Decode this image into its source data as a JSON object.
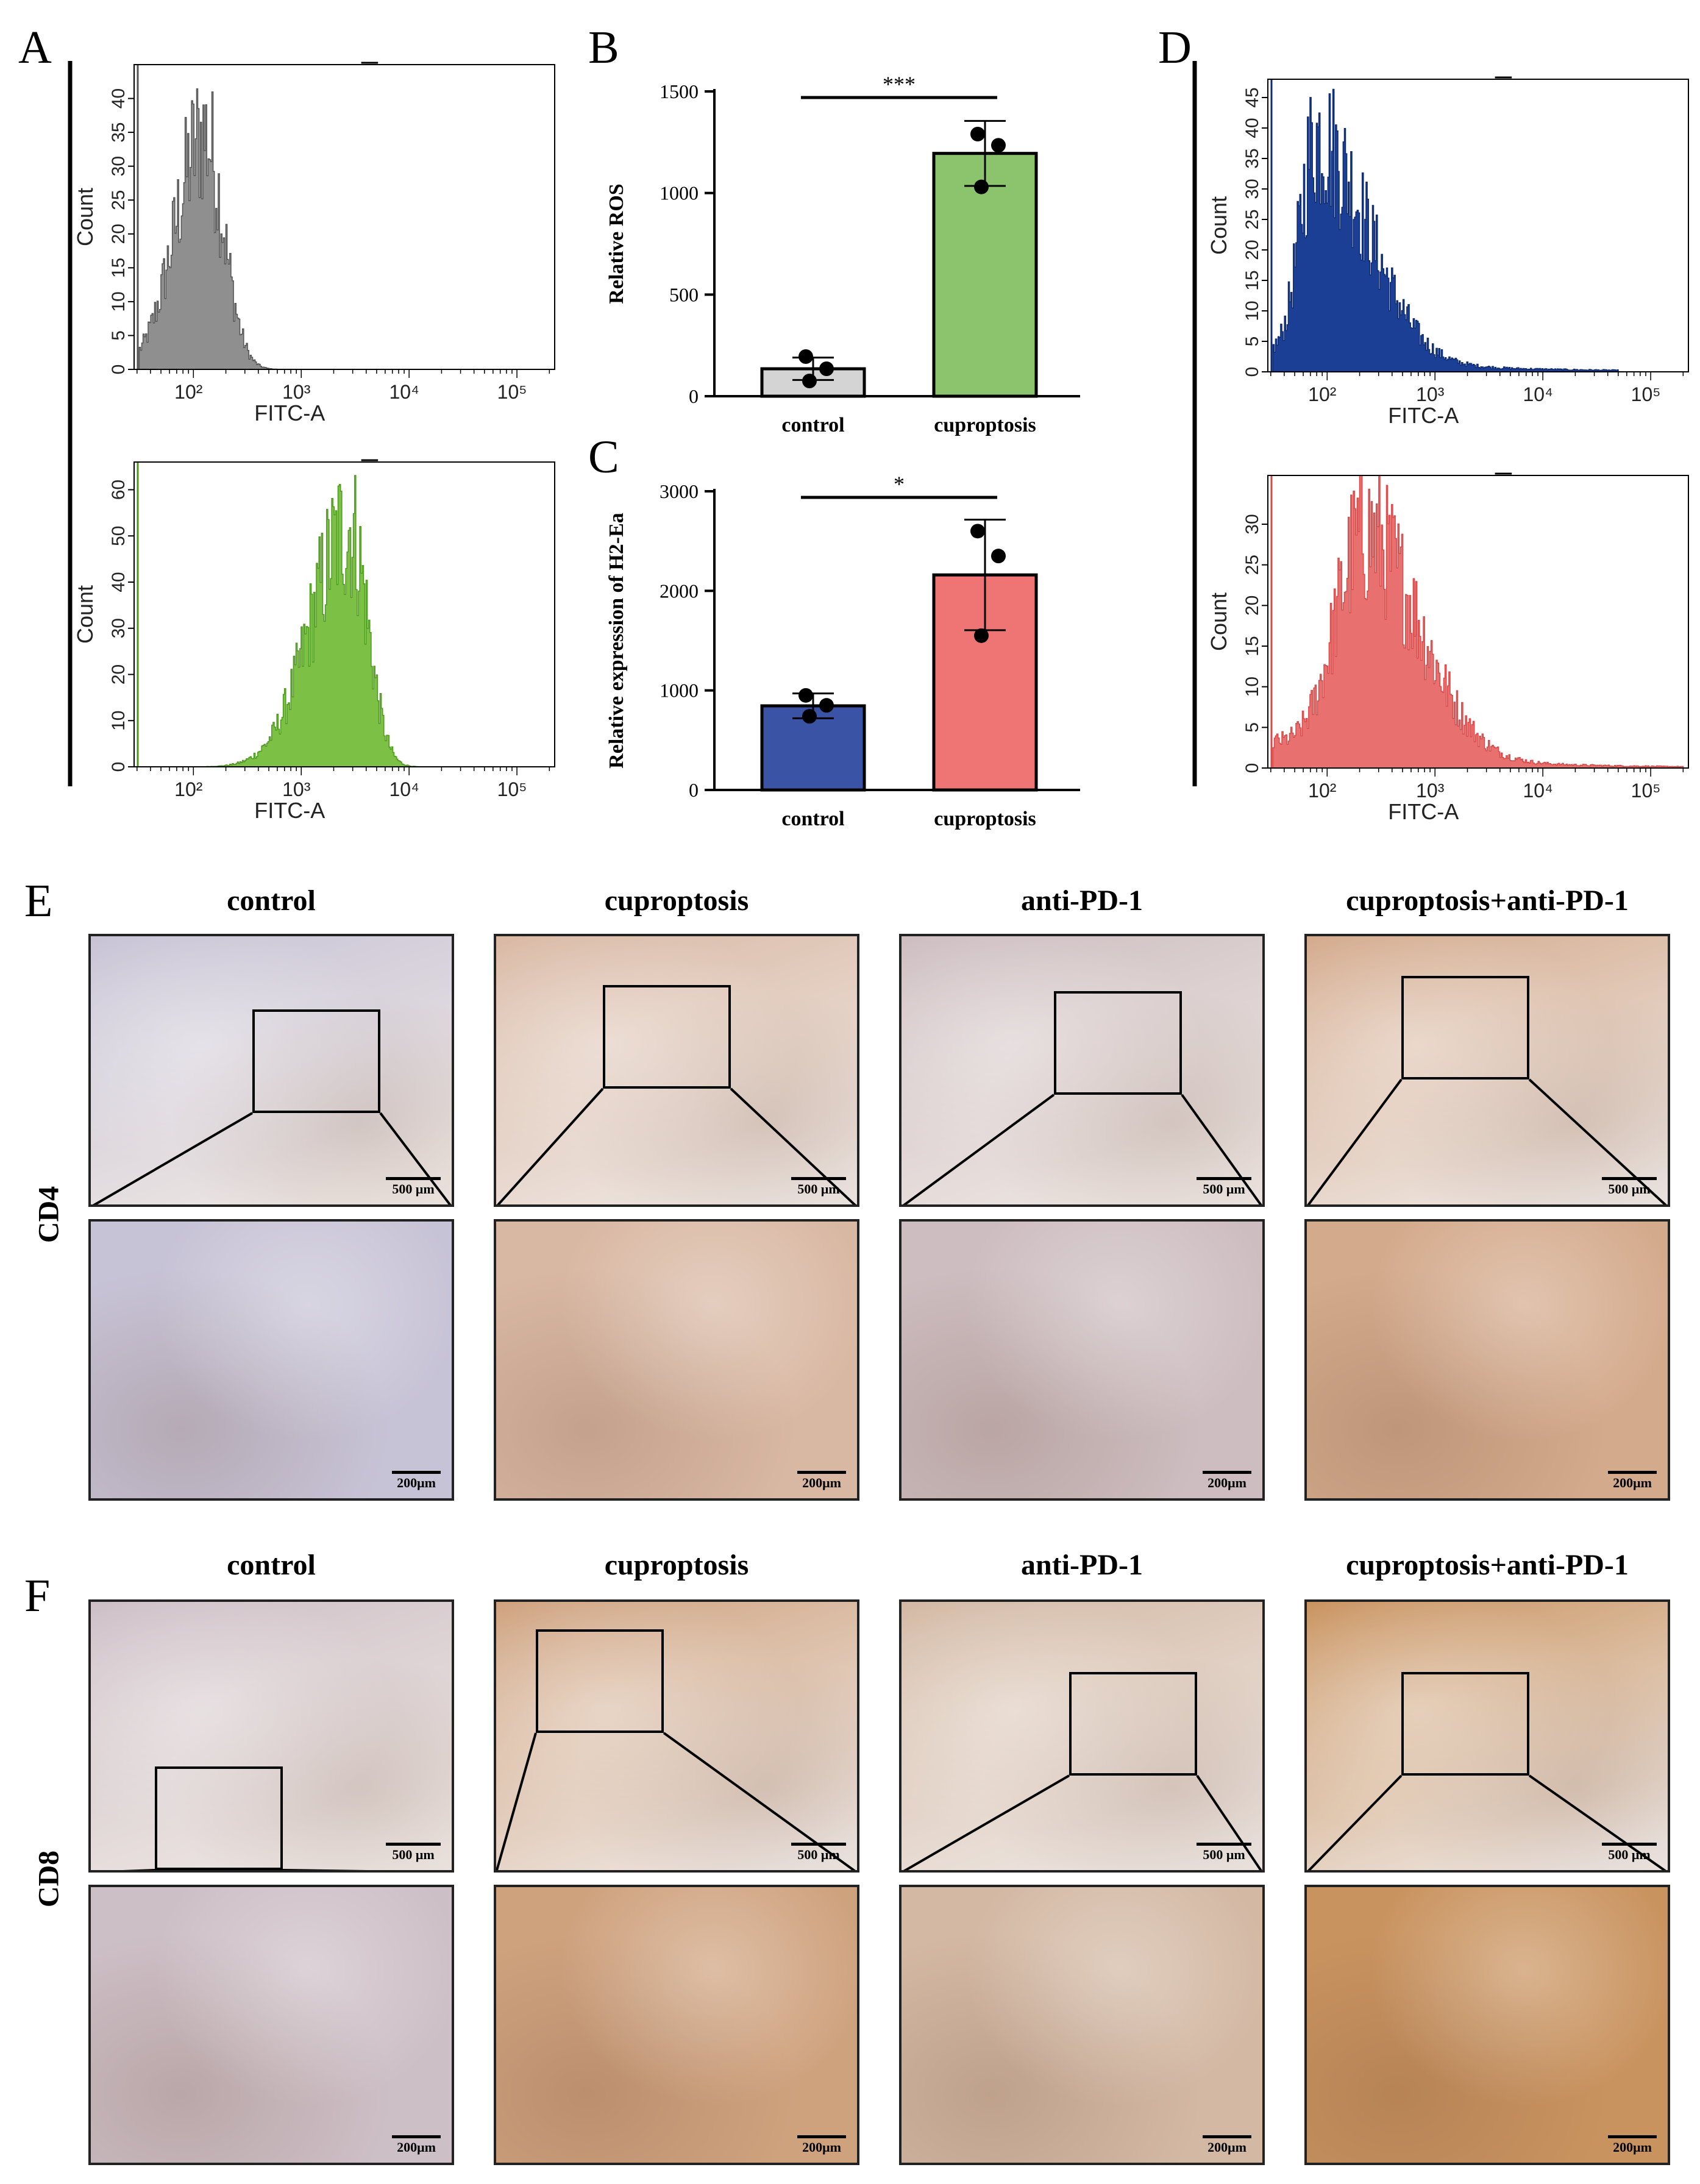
{
  "panel_letters": {
    "a": "A",
    "b": "B",
    "c": "C",
    "d": "D",
    "e": "E",
    "f": "F"
  },
  "chart_data": [
    {
      "id": "A-top",
      "type": "histogram",
      "color": "#8f8f8f",
      "edge_color": "#555555",
      "xlabel": "FITC-A",
      "ylabel": "Count",
      "yticks": [
        0,
        5,
        10,
        15,
        20,
        25,
        30,
        35,
        40
      ],
      "xticks": [
        "10²",
        "10³",
        "10⁴",
        "10⁵"
      ],
      "log_xlim": [
        1.45,
        5.35
      ],
      "ylim": [
        0,
        45
      ],
      "peak_log": 2.1,
      "peak_count": 42,
      "spread_left": 0.45,
      "spread_right": 0.3,
      "min_log": 1.5,
      "max_log": 2.9,
      "tail": 0
    },
    {
      "id": "A-bottom",
      "type": "histogram",
      "color": "#7cc046",
      "edge_color": "#4e9a1e",
      "xlabel": "FITC-A",
      "ylabel": "Count",
      "yticks": [
        0,
        10,
        20,
        30,
        40,
        50,
        60
      ],
      "xticks": [
        "10²",
        "10³",
        "10⁴",
        "10⁵"
      ],
      "log_xlim": [
        1.45,
        5.35
      ],
      "ylim": [
        0,
        66
      ],
      "peak_log": 3.45,
      "peak_count": 63,
      "spread_left": 0.6,
      "spread_right": 0.28,
      "min_log": 1.7,
      "max_log": 4.15,
      "tail": 0
    },
    {
      "id": "D-top",
      "type": "histogram",
      "color": "#1a3f94",
      "edge_color": "#0f2c70",
      "xlabel": "FITC-A",
      "ylabel": "Count",
      "yticks": [
        0,
        5,
        10,
        15,
        20,
        25,
        30,
        35,
        40,
        45
      ],
      "xticks": [
        "10²",
        "10³",
        "10⁴",
        "10⁵"
      ],
      "log_xlim": [
        1.45,
        5.35
      ],
      "ylim": [
        0,
        48
      ],
      "peak_log": 1.9,
      "peak_count": 44,
      "spread_left": 0.25,
      "spread_right": 0.8,
      "min_log": 1.5,
      "max_log": 4.7,
      "tail": 1
    },
    {
      "id": "D-bottom",
      "type": "histogram",
      "color": "#e8706e",
      "edge_color": "#d84a4a",
      "xlabel": "FITC-A",
      "ylabel": "Count",
      "yticks": [
        0,
        5,
        10,
        15,
        20,
        25,
        30
      ],
      "xticks": [
        "10²",
        "10³",
        "10⁴",
        "10⁵"
      ],
      "log_xlim": [
        1.45,
        5.35
      ],
      "ylim": [
        0,
        36
      ],
      "peak_log": 2.35,
      "peak_count": 33,
      "spread_left": 0.45,
      "spread_right": 0.85,
      "min_log": 1.5,
      "max_log": 5.3,
      "tail": 1
    },
    {
      "id": "B",
      "type": "bar",
      "title": "",
      "ylabel": "Relative ROS",
      "xlabel": "",
      "categories": [
        "control",
        "cuproptosis"
      ],
      "values": [
        135,
        1195
      ],
      "errors": [
        55,
        160
      ],
      "points": [
        [
          195,
          135,
          75
        ],
        [
          1290,
          1235,
          1030
        ]
      ],
      "colors": [
        "#d4d4d4",
        "#8cc46e"
      ],
      "ylim": [
        0,
        1500
      ],
      "yticks": [
        0,
        500,
        1000,
        1500
      ],
      "significance": "***"
    },
    {
      "id": "C",
      "type": "bar",
      "title": "",
      "ylabel": "Relative expression of H2-Ea",
      "xlabel": "",
      "categories": [
        "control",
        "cuproptosis"
      ],
      "values": [
        845,
        2160
      ],
      "errors": [
        125,
        555
      ],
      "points": [
        [
          950,
          850,
          740
        ],
        [
          2600,
          2350,
          1550
        ]
      ],
      "colors": [
        "#3b53a4",
        "#ef7474"
      ],
      "ylim": [
        0,
        3000
      ],
      "yticks": [
        0,
        1000,
        2000,
        3000
      ],
      "significance": "*"
    }
  ],
  "ihc": {
    "columns": [
      "control",
      "cuproptosis",
      "anti-PD-1",
      "cuproptosis+anti-PD-1"
    ],
    "rows": [
      "CD4",
      "CD8"
    ],
    "scale_low": "500 μm",
    "scale_high": "200μm",
    "tissue_colors": {
      "CD4": [
        "#c7c3d6",
        "#d9b8a3",
        "#cdbdc0",
        "#d4aa8c"
      ],
      "CD8": [
        "#cdbfc6",
        "#cfa27e",
        "#d3b8a3",
        "#c9935f"
      ]
    }
  }
}
